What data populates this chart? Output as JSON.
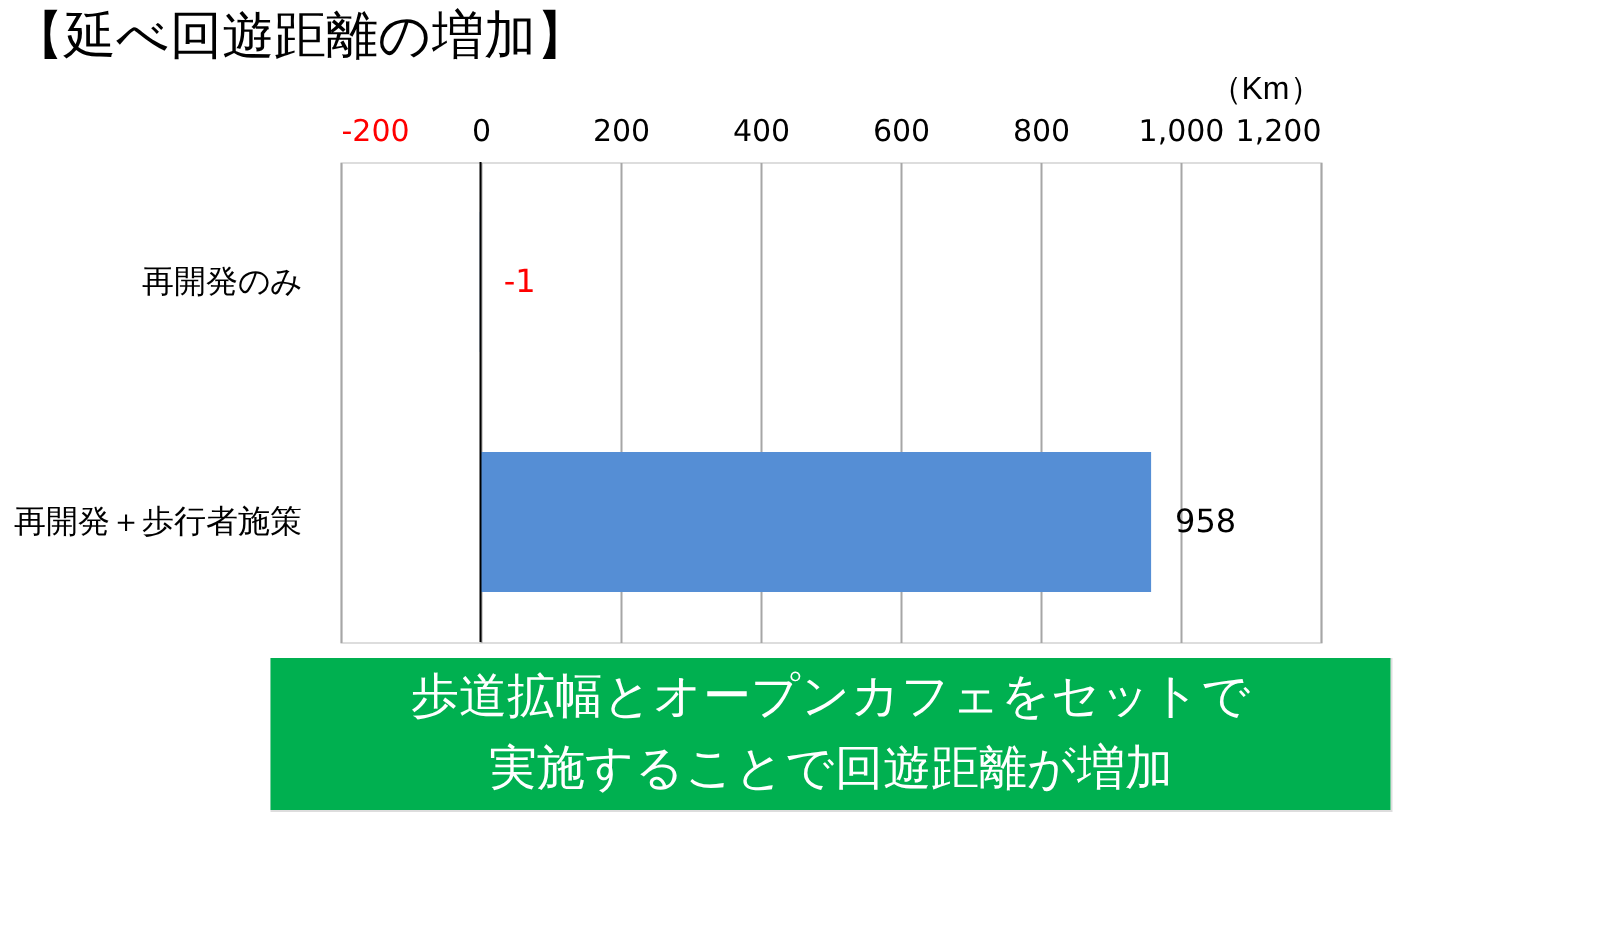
{
  "chart_data": {
    "type": "bar",
    "orientation": "horizontal",
    "title": "【延べ回遊距離の増加】",
    "xlabel": "（Km）",
    "categories": [
      "再開発のみ",
      "再開発＋歩行者施策"
    ],
    "values": [
      -1,
      958
    ],
    "color": "#558ed5",
    "value_labels": [
      "-1",
      "958"
    ],
    "xlim": [
      -200,
      1200
    ],
    "xticks": [
      -200,
      0,
      200,
      400,
      600,
      800,
      {
        "value": 1000,
        "label": "1,000"
      },
      {
        "value": 1200,
        "label": "1,200"
      }
    ],
    "grid": "x",
    "annotations": [
      "歩道拡幅とオープンカフェをセットで",
      "実施することで回遊距離が増加"
    ]
  }
}
